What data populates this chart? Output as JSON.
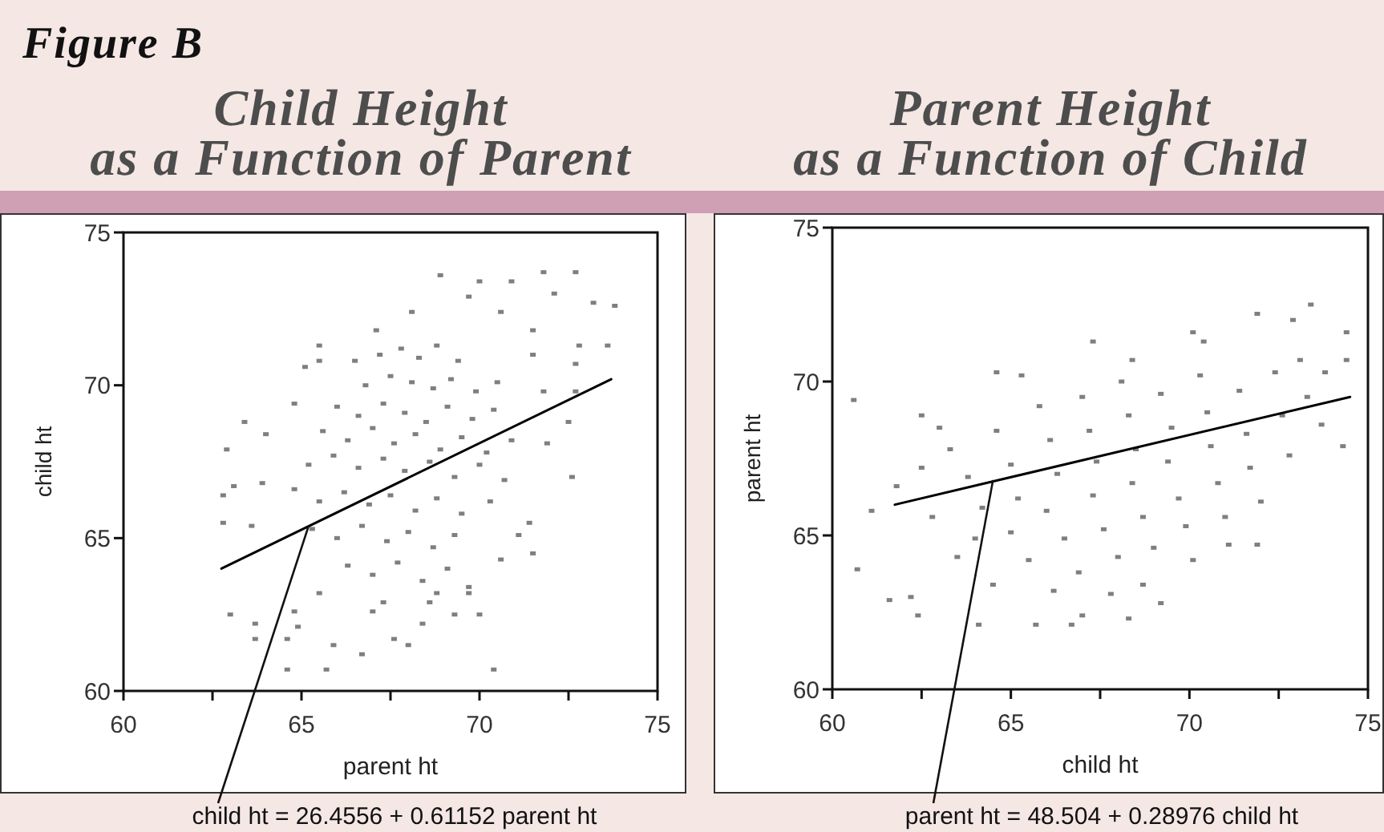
{
  "chart_data": [
    {
      "type": "scatter",
      "title": "Child Height\nas a Function of Parent",
      "xlabel": "parent ht",
      "ylabel": "child ht",
      "xlim": [
        60,
        75
      ],
      "ylim": [
        60,
        75
      ],
      "xticks": [
        60,
        {
          "value": 62.5,
          "label": null
        },
        65,
        {
          "value": 67.5,
          "label": null
        },
        70,
        {
          "value": 72.5,
          "label": null
        },
        75
      ],
      "yticks": [
        60,
        65,
        70,
        75
      ],
      "marker": "square",
      "series": [
        {
          "color": "#7f7f7f",
          "x": [
            72.7,
            71.8,
            68.9,
            70.0,
            70.9,
            73.8,
            73.2,
            72.1,
            68.1,
            69.7,
            70.6,
            71.5,
            72.8,
            73.6,
            65.5,
            67.1,
            65.5,
            65.1,
            63.4,
            62.9,
            64.0,
            64.8,
            62.8,
            63.1,
            63.9,
            62.8,
            63.6,
            63.0,
            63.7,
            63.7,
            64.6,
            64.8,
            64.6,
            65.7,
            65.9,
            66.7,
            67.6,
            68.0,
            68.4,
            69.3,
            70.0,
            70.4,
            69.7,
            68.8,
            67.0,
            65.5,
            64.9,
            71.5,
            70.6,
            71.1,
            71.4,
            72.6,
            71.9,
            72.5,
            72.7,
            71.8,
            71.5,
            72.7,
            66.5,
            67.2,
            67.8,
            68.3,
            68.8,
            69.4,
            66.8,
            67.5,
            68.1,
            68.7,
            69.2,
            69.9,
            70.5,
            66.0,
            66.6,
            67.3,
            67.9,
            68.5,
            69.1,
            69.8,
            70.4,
            65.6,
            66.3,
            67.0,
            67.6,
            68.2,
            68.9,
            69.5,
            70.2,
            70.9,
            65.2,
            65.9,
            66.6,
            67.3,
            67.9,
            68.6,
            69.3,
            70.0,
            70.7,
            64.8,
            65.5,
            66.2,
            66.9,
            67.5,
            68.2,
            68.8,
            69.5,
            70.3,
            65.3,
            66.0,
            66.7,
            67.4,
            68.0,
            68.7,
            69.3,
            66.3,
            67.0,
            67.7,
            68.4,
            69.1,
            69.7,
            67.3,
            68.6
          ],
          "values": [
            73.7,
            73.7,
            73.6,
            73.4,
            73.4,
            72.6,
            72.7,
            73.0,
            72.4,
            72.9,
            72.4,
            71.8,
            71.3,
            71.3,
            71.3,
            71.8,
            70.8,
            70.6,
            68.8,
            67.9,
            68.4,
            69.4,
            66.4,
            66.7,
            66.8,
            65.5,
            65.4,
            62.5,
            62.2,
            61.7,
            61.7,
            62.6,
            60.7,
            60.7,
            61.5,
            61.2,
            61.7,
            61.5,
            62.2,
            62.5,
            62.5,
            60.7,
            63.2,
            63.2,
            62.6,
            63.2,
            62.1,
            64.5,
            64.3,
            65.1,
            65.5,
            67.0,
            68.1,
            68.8,
            69.8,
            69.8,
            71.0,
            70.7,
            70.8,
            71.0,
            71.2,
            70.9,
            71.3,
            70.8,
            70.0,
            70.3,
            70.1,
            69.9,
            70.2,
            69.8,
            70.1,
            69.3,
            69.0,
            69.4,
            69.1,
            68.8,
            69.3,
            68.9,
            69.2,
            68.5,
            68.2,
            68.6,
            68.1,
            68.4,
            67.9,
            68.3,
            67.8,
            68.2,
            67.4,
            67.7,
            67.3,
            67.6,
            67.2,
            67.5,
            67.0,
            67.4,
            66.9,
            66.6,
            66.2,
            66.5,
            66.1,
            66.4,
            65.9,
            66.3,
            65.8,
            66.2,
            65.3,
            65.0,
            65.4,
            64.9,
            65.2,
            64.7,
            65.1,
            64.1,
            63.8,
            64.2,
            63.6,
            64.0,
            63.4,
            62.9,
            62.9
          ]
        },
        {
          "type": "line",
          "color": "#000000",
          "marker": "none",
          "x": [
            62.75,
            73.7
          ],
          "values": [
            64.0,
            70.2
          ]
        }
      ],
      "annotations": [
        "Figure B",
        {
          "text": "child ht = 26.4556 + 0.61152 parent ht",
          "x": 65.2,
          "y": 65.4
        }
      ]
    },
    {
      "type": "scatter",
      "title": "Parent Height\nas a Function of Child",
      "xlabel": "child ht",
      "ylabel": "parent ht",
      "xlim": [
        60,
        75
      ],
      "ylim": [
        60,
        75
      ],
      "xticks": [
        60,
        {
          "value": 62.5,
          "label": null
        },
        65,
        {
          "value": 67.5,
          "label": null
        },
        70,
        {
          "value": 72.5,
          "label": null
        },
        75
      ],
      "yticks": [
        60,
        65,
        70,
        75
      ],
      "marker": "square",
      "series": [
        {
          "color": "#7f7f7f",
          "x": [
            60.6,
            61.1,
            60.7,
            61.6,
            62.4,
            62.2,
            61.8,
            62.5,
            63.0,
            64.1,
            64.6,
            65.3,
            65.7,
            66.7,
            67.0,
            67.3,
            68.3,
            69.2,
            70.1,
            70.4,
            71.9,
            72.9,
            73.4,
            74.4,
            74.4,
            74.3,
            73.8,
            73.1,
            71.1,
            71.9,
            68.7,
            70.1,
            68.4,
            63.3,
            63.8,
            64.2,
            64.0,
            63.5,
            64.6,
            65.0,
            65.2,
            65.0,
            65.5,
            65.8,
            66.1,
            66.3,
            66.0,
            66.5,
            66.9,
            67.0,
            67.2,
            67.4,
            67.3,
            67.6,
            68.0,
            68.1,
            68.3,
            68.5,
            68.4,
            68.7,
            69.0,
            69.2,
            69.5,
            69.4,
            69.7,
            69.9,
            70.3,
            70.5,
            70.6,
            70.8,
            71.0,
            71.4,
            71.6,
            71.7,
            72.0,
            72.4,
            72.6,
            72.8,
            73.3,
            73.7,
            62.5,
            62.8,
            64.5,
            66.2,
            67.8
          ],
          "values": [
            69.4,
            65.8,
            63.9,
            62.9,
            62.4,
            63.0,
            66.6,
            68.9,
            68.5,
            62.1,
            70.3,
            70.2,
            62.1,
            62.1,
            62.4,
            71.3,
            62.3,
            62.8,
            71.6,
            71.3,
            72.2,
            72.0,
            72.5,
            71.6,
            70.7,
            67.9,
            70.3,
            70.7,
            64.7,
            64.7,
            63.4,
            64.2,
            70.7,
            67.8,
            66.9,
            65.9,
            64.9,
            64.3,
            68.4,
            67.3,
            66.2,
            65.1,
            64.2,
            69.2,
            68.1,
            67.0,
            65.8,
            64.9,
            63.8,
            69.5,
            68.4,
            67.4,
            66.3,
            65.2,
            64.3,
            70.0,
            68.9,
            67.8,
            66.7,
            65.6,
            64.6,
            69.6,
            68.5,
            67.4,
            66.2,
            65.3,
            70.2,
            69.0,
            67.9,
            66.7,
            65.6,
            69.7,
            68.3,
            67.2,
            66.1,
            70.3,
            68.9,
            67.6,
            69.5,
            68.6,
            67.2,
            65.6,
            63.4,
            63.2,
            63.1
          ]
        },
        {
          "type": "line",
          "color": "#000000",
          "marker": "none",
          "x": [
            61.75,
            74.5
          ],
          "values": [
            66.0,
            69.5
          ]
        }
      ],
      "annotations": [
        {
          "text": "parent ht = 48.504 + 0.28976 child ht",
          "x": 64.5,
          "y": 66.8
        }
      ]
    }
  ]
}
